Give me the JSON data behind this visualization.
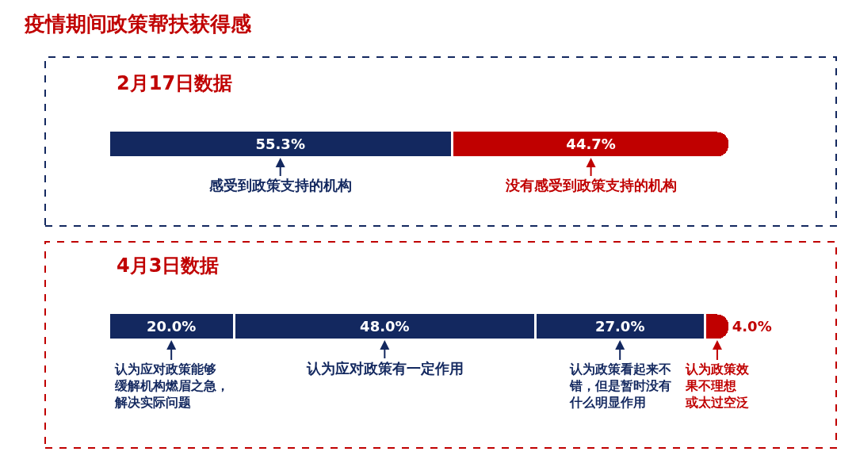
{
  "chart_data": [
    {
      "type": "bar",
      "orientation": "horizontal",
      "stacked": true,
      "title": "疫情期间政策帮扶获得感",
      "subtitle": "2月17日数据",
      "categories": [
        null
      ],
      "series": [
        {
          "name": "感受到政策支持的机构",
          "color": "#13285f",
          "values": [
            55.3
          ],
          "value_labels": [
            "55.3%"
          ]
        },
        {
          "name": "没有感受到政策支持的机构",
          "color": "#c00000",
          "values": [
            44.7
          ],
          "value_labels": [
            "44.7%"
          ]
        }
      ]
    },
    {
      "type": "bar",
      "orientation": "horizontal",
      "stacked": true,
      "title": "4月3日数据",
      "categories": [
        null
      ],
      "series": [
        {
          "name": "认为应对政策能够缓解机构燃眉之急，解决实际问题",
          "color": "#13285f",
          "values": [
            20.0
          ],
          "value_labels": [
            "20.0%"
          ]
        },
        {
          "name": "认为应对政策有一定作用",
          "color": "#13285f",
          "values": [
            48.0
          ],
          "value_labels": [
            "48.0%"
          ]
        },
        {
          "name": "认为政策看起来不错，但是暂时没有什么明显作用",
          "color": "#13285f",
          "values": [
            27.0
          ],
          "value_labels": [
            "27.0%"
          ]
        },
        {
          "name": "认为政策效果不理想或太过空泛",
          "color": "#c00000",
          "values": [
            4.0
          ],
          "value_labels": [
            "4.0%"
          ]
        }
      ]
    }
  ]
}
